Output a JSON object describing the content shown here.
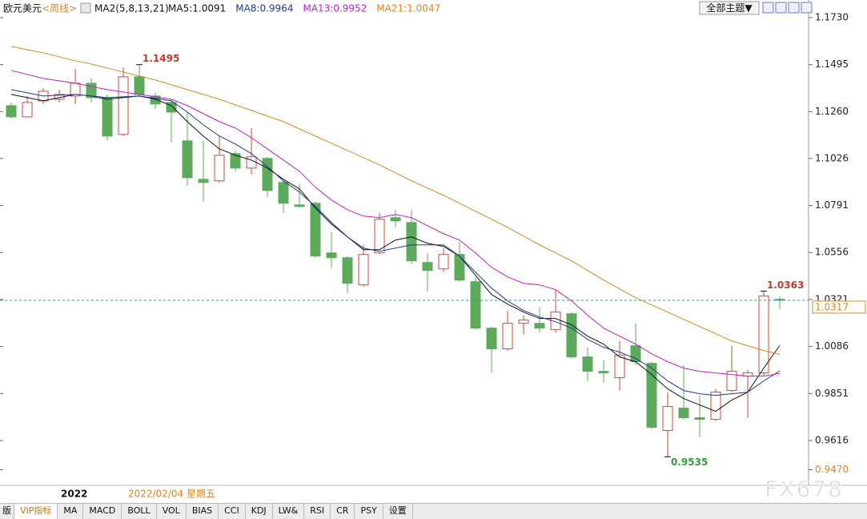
{
  "header": {
    "symbol": "欧元美元",
    "period": "<周线>",
    "indicator": "MA2(5,8,13,21)",
    "theme_button": "全部主题▼"
  },
  "chart_data": {
    "type": "candlestick",
    "open": [
      1.129,
      1.1234,
      1.1314,
      1.1322,
      1.1338,
      1.1402,
      1.133,
      1.1146,
      1.1434,
      1.1338,
      1.1306,
      1.1114,
      1.0922,
      1.0914,
      1.105,
      1.0978,
      1.1026,
      1.0906,
      1.0794,
      1.0802,
      1.0554,
      1.053,
      1.0394,
      1.0554,
      1.073,
      1.0706,
      1.0506,
      1.0474,
      1.0546,
      1.041,
      1.0178,
      1.0074,
      1.0202,
      1.0202,
      1.017,
      1.025,
      1.0034,
      0.9962,
      0.993,
      1.009,
      1.0002,
      0.9666,
      0.9778,
      0.973,
      0.9722,
      0.9866,
      0.9938,
      0.9954,
      1.0322
    ],
    "high": [
      1.1306,
      1.1338,
      1.1378,
      1.137,
      1.1474,
      1.1426,
      1.1346,
      1.1482,
      1.1495,
      1.1354,
      1.1322,
      1.1258,
      1.1114,
      1.1138,
      1.1066,
      1.1178,
      1.1034,
      1.0914,
      1.0898,
      1.081,
      1.0658,
      1.0538,
      1.0594,
      1.0754,
      1.077,
      1.077,
      1.0554,
      1.0578,
      1.061,
      1.0434,
      1.0186,
      1.0266,
      1.0242,
      1.0282,
      1.037,
      1.0258,
      1.0082,
      1.0018,
      1.0114,
      1.0202,
      1.001,
      0.9858,
      0.9994,
      0.9842,
      0.9874,
      1.009,
      0.997,
      1.0363,
      1.0338
    ],
    "low": [
      1.1226,
      1.1234,
      1.1298,
      1.1306,
      1.1298,
      1.1306,
      1.1118,
      1.1138,
      1.133,
      1.1274,
      1.1106,
      1.089,
      1.081,
      1.0906,
      1.0962,
      1.0946,
      1.0834,
      1.0754,
      1.0778,
      1.053,
      1.0482,
      1.0354,
      1.0386,
      1.0546,
      1.0682,
      1.0498,
      1.0362,
      1.0458,
      1.041,
      1.017,
      0.9954,
      1.0066,
      1.0146,
      1.0154,
      1.0154,
      1.0026,
      0.9914,
      0.9906,
      0.9866,
      0.9994,
      0.9674,
      0.9535,
      0.9722,
      0.9634,
      0.9714,
      0.9858,
      0.973,
      0.9938,
      1.0274
    ],
    "close": [
      1.1234,
      1.1306,
      1.1362,
      1.1346,
      1.1402,
      1.133,
      1.1138,
      1.1434,
      1.1346,
      1.1298,
      1.1258,
      1.093,
      1.0906,
      1.1042,
      1.0978,
      1.1034,
      1.0866,
      1.0802,
      1.0786,
      1.0538,
      1.053,
      1.0402,
      1.0546,
      1.0722,
      1.0714,
      1.0514,
      1.0466,
      1.0546,
      1.0418,
      1.0178,
      1.0074,
      1.0202,
      1.0218,
      1.0178,
      1.0258,
      1.0034,
      0.9962,
      0.9954,
      1.0042,
      1.001,
      0.9682,
      0.9786,
      0.973,
      0.9722,
      0.9858,
      0.9962,
      0.9954,
      1.0338,
      1.0317
    ],
    "up_color": "#d0473c",
    "down_color": "#5cab5c",
    "last_price_color": "#2a9d9d",
    "series": [
      {
        "name": "MA5:1.0091",
        "color": "#111111",
        "values": [
          1.1346,
          1.133,
          1.1314,
          1.133,
          1.1346,
          1.1338,
          1.1322,
          1.133,
          1.1338,
          1.1322,
          1.129,
          1.121,
          1.1138,
          1.1074,
          1.1042,
          1.1018,
          1.0978,
          1.0922,
          1.0874,
          1.0778,
          1.0698,
          1.0634,
          1.057,
          1.057,
          1.0618,
          1.0634,
          1.0602,
          1.0586,
          1.0538,
          1.0442,
          1.0346,
          1.0298,
          1.0258,
          1.0226,
          1.0226,
          1.0194,
          1.0138,
          1.0098,
          1.0034,
          1.001,
          0.9946,
          0.9874,
          0.9826,
          0.9794,
          0.9762,
          0.9818,
          0.9858,
          0.9978,
          1.0091
        ]
      },
      {
        "name": "MA8:0.9964",
        "color": "#1f3b8f",
        "values": [
          1.137,
          1.1354,
          1.1338,
          1.1342,
          1.1346,
          1.1338,
          1.133,
          1.1334,
          1.1338,
          1.1326,
          1.1314,
          1.1258,
          1.1194,
          1.1138,
          1.1098,
          1.105,
          1.0986,
          1.0914,
          1.0858,
          1.0786,
          1.0706,
          1.0634,
          1.0578,
          1.0562,
          1.0578,
          1.0594,
          1.0594,
          1.0594,
          1.0538,
          1.0458,
          1.0378,
          1.0314,
          1.0266,
          1.0234,
          1.021,
          1.0178,
          1.0122,
          1.0082,
          1.0058,
          1.0026,
          0.9978,
          0.9914,
          0.9866,
          0.985,
          0.9842,
          0.985,
          0.9858,
          0.9914,
          0.9964
        ]
      },
      {
        "name": "MA13:0.9952",
        "color": "#c51fc5",
        "values": [
          1.1466,
          1.1446,
          1.1426,
          1.1414,
          1.1402,
          1.1386,
          1.137,
          1.1358,
          1.1346,
          1.1334,
          1.1322,
          1.129,
          1.125,
          1.121,
          1.1178,
          1.113,
          1.1074,
          1.1018,
          1.0962,
          1.0882,
          1.0818,
          1.077,
          1.0738,
          1.073,
          1.0746,
          1.073,
          1.069,
          1.065,
          1.0618,
          1.0554,
          1.0482,
          1.0434,
          1.0402,
          1.0394,
          1.037,
          1.0314,
          1.0242,
          1.0178,
          1.0138,
          1.0098,
          1.005,
          1.001,
          0.9978,
          0.9962,
          0.9954,
          0.9946,
          0.9938,
          0.9938,
          0.9952
        ]
      },
      {
        "name": "MA21:1.0047",
        "color": "#e0861c",
        "values": [
          1.1586,
          1.157,
          1.1554,
          1.1534,
          1.1514,
          1.1498,
          1.1478,
          1.1458,
          1.1438,
          1.1418,
          1.1394,
          1.137,
          1.1346,
          1.1322,
          1.1294,
          1.1266,
          1.1238,
          1.121,
          1.1174,
          1.1138,
          1.1102,
          1.1066,
          1.103,
          1.0994,
          1.0954,
          1.0914,
          1.0878,
          1.0842,
          1.0802,
          1.0762,
          1.0722,
          1.0682,
          1.0638,
          1.0594,
          1.0554,
          1.0514,
          1.0466,
          1.0418,
          1.0374,
          1.033,
          1.0294,
          1.0258,
          1.0222,
          1.0186,
          1.015,
          1.0114,
          1.009,
          1.0066,
          1.0047
        ]
      }
    ],
    "ylim": [
      0.9396,
      1.1818
    ],
    "yticks": [
      {
        "value": 1.173,
        "label": "1.1730"
      },
      1.1495,
      {
        "value": 1.126,
        "label": "1.1260"
      },
      1.1026,
      1.0791,
      1.0556,
      1.0321,
      1.0086,
      0.9851,
      0.9616,
      {
        "value": 0.947,
        "label": "0.9470"
      }
    ],
    "x_labels": [
      "2022",
      "2022/02/04 星期五"
    ]
  },
  "tabs": [
    "版",
    "VIP指标",
    "MA",
    "MACD",
    "BOLL",
    "VOL",
    "BIAS",
    "CCI",
    "KDJ",
    "LW&",
    "RSI",
    "CR",
    "PSY",
    "设置"
  ],
  "watermark": "FX678"
}
